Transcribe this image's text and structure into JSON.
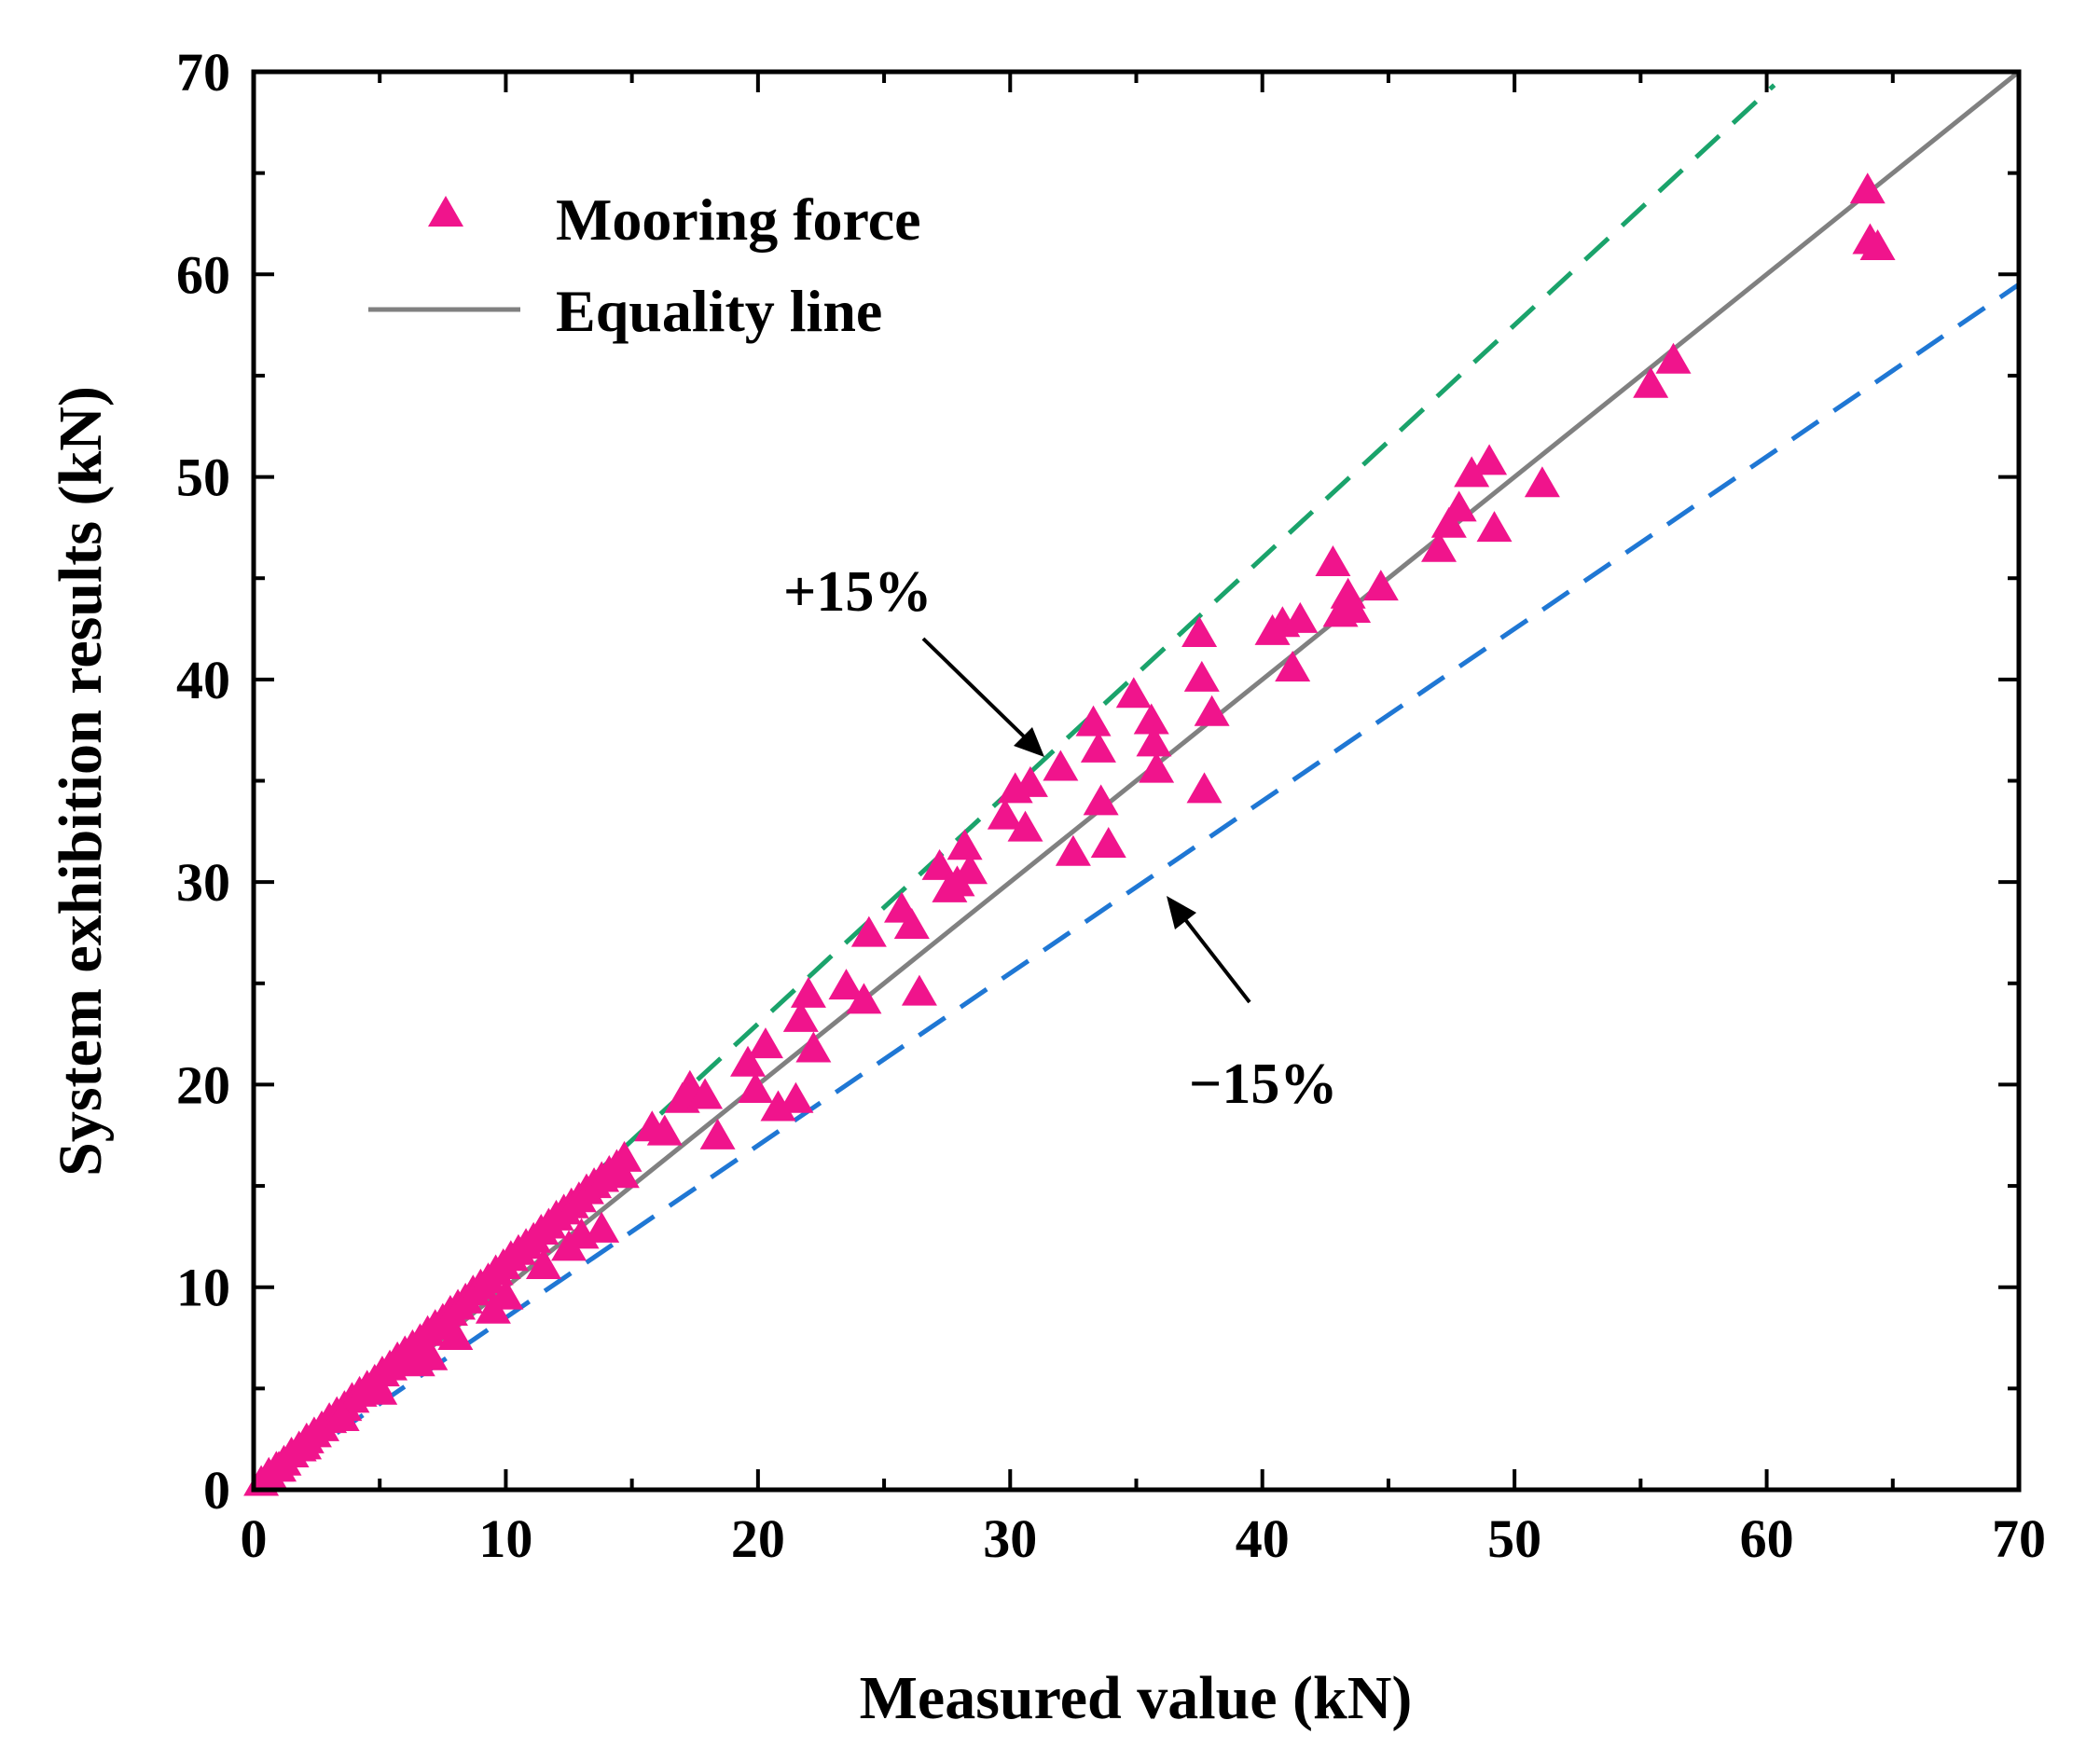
{
  "chart_data": {
    "type": "scatter",
    "title": "",
    "xlabel": "Measured value (kN)",
    "ylabel": "System exhibition results (kN)",
    "xlim": [
      0,
      70
    ],
    "ylim": [
      0,
      70
    ],
    "xticks": [
      "0",
      "10",
      "20",
      "30",
      "40",
      "50",
      "60",
      "70"
    ],
    "yticks": [
      "0",
      "10",
      "20",
      "30",
      "40",
      "50",
      "60",
      "70"
    ],
    "grid": false,
    "legend_position": "top-left",
    "legend": {
      "scatter_label": "Mooring force",
      "line_label": "Equality line"
    },
    "annotations": {
      "upper": {
        "text": "+15%",
        "x": 35.5,
        "y": 39
      },
      "lower": {
        "text": "−15%",
        "x": 36,
        "y": 32
      }
    },
    "colors": {
      "points": "#f0148c",
      "equality": "#808080",
      "upper": "#1aa36b",
      "lower": "#1f77d4"
    },
    "lines": [
      {
        "name": "Equality line",
        "slope": 1.0,
        "x": [
          0,
          70
        ]
      },
      {
        "name": "+15%",
        "slope": 1.15,
        "x": [
          0,
          60.3
        ]
      },
      {
        "name": "−15%",
        "slope": 0.85,
        "x": [
          0,
          70
        ]
      }
    ],
    "series": [
      {
        "name": "Mooring force",
        "x": [
          0.3,
          0.6,
          0.9,
          1.2,
          1.5,
          1.8,
          2.1,
          2.4,
          2.7,
          3.0,
          3.3,
          3.6,
          3.9,
          4.2,
          4.5,
          4.8,
          5.1,
          5.4,
          5.7,
          6.0,
          6.3,
          6.6,
          6.9,
          7.2,
          7.5,
          7.8,
          8.1,
          8.4,
          8.7,
          9.0,
          9.3,
          9.6,
          9.9,
          10.2,
          10.5,
          10.8,
          11.1,
          11.4,
          11.7,
          12.0,
          12.3,
          12.6,
          12.9,
          13.2,
          13.5,
          13.8,
          14.1,
          14.4,
          14.7,
          1.0,
          2.0,
          3.5,
          5.0,
          6.5,
          8.0,
          10.0,
          11.5,
          13.0,
          13.8,
          7.0,
          9.5,
          12.5,
          14.6,
          15.8,
          16.3,
          17.0,
          17.3,
          17.9,
          18.4,
          19.6,
          19.9,
          20.3,
          20.8,
          21.5,
          21.7,
          22.0,
          22.2,
          23.5,
          24.2,
          24.4,
          25.7,
          26.1,
          26.4,
          27.2,
          27.6,
          27.9,
          28.2,
          28.4,
          29.8,
          30.2,
          30.6,
          30.8,
          32.0,
          32.5,
          33.3,
          33.5,
          33.6,
          33.9,
          34.9,
          35.6,
          35.7,
          35.8,
          37.5,
          37.6,
          37.7,
          38.0,
          40.4,
          40.8,
          41.2,
          41.5,
          42.8,
          43.1,
          43.4,
          43.6,
          44.7,
          47.0,
          47.4,
          47.8,
          48.3,
          49.0,
          49.2,
          51.1,
          55.4,
          56.3,
          64.0,
          64.1,
          64.4
        ],
        "y": [
          0.3,
          0.7,
          1.0,
          1.3,
          1.7,
          2.0,
          2.4,
          2.7,
          3.0,
          3.4,
          3.7,
          4.0,
          4.4,
          4.7,
          5.0,
          5.3,
          5.7,
          6.0,
          6.4,
          6.7,
          7.0,
          7.3,
          7.7,
          8.0,
          8.3,
          8.7,
          9.0,
          9.3,
          9.7,
          10.0,
          10.3,
          10.7,
          11.0,
          11.4,
          11.7,
          12.0,
          12.3,
          12.7,
          13.0,
          13.4,
          13.7,
          14.0,
          14.3,
          14.7,
          15.0,
          15.3,
          15.6,
          15.9,
          16.3,
          1.0,
          2.1,
          3.5,
          4.8,
          6.2,
          7.5,
          9.5,
          11.0,
          12.5,
          12.8,
          6.5,
          8.8,
          11.9,
          15.5,
          17.8,
          17.6,
          19.2,
          19.8,
          19.4,
          17.4,
          21.0,
          19.7,
          21.9,
          18.8,
          19.2,
          23.2,
          24.4,
          21.7,
          24.8,
          24.1,
          27.4,
          28.6,
          27.8,
          24.5,
          30.7,
          29.6,
          29.9,
          31.7,
          30.5,
          33.2,
          34.5,
          32.6,
          34.8,
          35.6,
          31.4,
          37.8,
          36.5,
          33.9,
          31.8,
          39.2,
          37.9,
          36.8,
          35.5,
          42.2,
          40.0,
          34.5,
          38.3,
          42.3,
          42.7,
          40.5,
          42.9,
          45.7,
          43.2,
          44.1,
          43.4,
          44.5,
          46.4,
          47.6,
          48.4,
          50.1,
          50.7,
          47.4,
          49.6,
          54.5,
          55.7,
          64.1,
          61.6,
          61.3
        ]
      }
    ]
  }
}
